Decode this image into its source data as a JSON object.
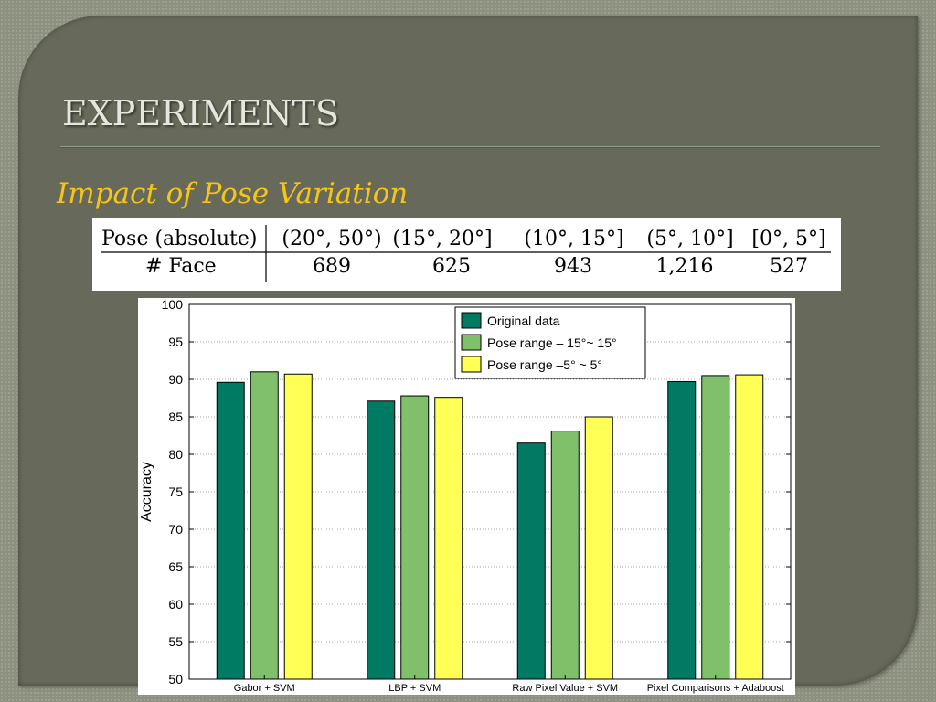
{
  "slide": {
    "title": "EXPERIMENTS",
    "subtitle": "Impact of Pose Variation"
  },
  "pose_table": {
    "row_header": "Pose (absolute)",
    "col_headers": [
      "(20°, 50°)",
      "(15°, 20°]",
      "(10°, 15°]",
      "(5°, 10°]",
      "[0°, 5°]"
    ],
    "count_header": "# Face",
    "counts": [
      "689",
      "625",
      "943",
      "1,216",
      "527"
    ]
  },
  "colors": {
    "panel": "#676a5a",
    "subtitle": "#f5c518",
    "series": [
      "#007a63",
      "#80c06a",
      "#ffff55"
    ]
  },
  "chart_data": {
    "type": "bar",
    "categories": [
      "Gabor + SVM",
      "LBP + SVM",
      "Raw Pixel Value + SVM",
      "Pixel Comparisons + Adaboost"
    ],
    "series": [
      {
        "name": "Original data",
        "values": [
          89.6,
          87.1,
          81.5,
          89.7
        ]
      },
      {
        "name": "Pose range – 15°~ 15°",
        "values": [
          91.0,
          87.8,
          83.1,
          90.5
        ]
      },
      {
        "name": "Pose range –5° ~ 5°",
        "values": [
          90.7,
          87.6,
          85.0,
          90.6
        ]
      }
    ],
    "ylabel": "Accuracy",
    "xlabel": "",
    "ylim": [
      50,
      100
    ],
    "yticks": [
      50,
      55,
      60,
      65,
      70,
      75,
      80,
      85,
      90,
      95,
      100
    ],
    "grid": true,
    "legend": "top-right"
  }
}
